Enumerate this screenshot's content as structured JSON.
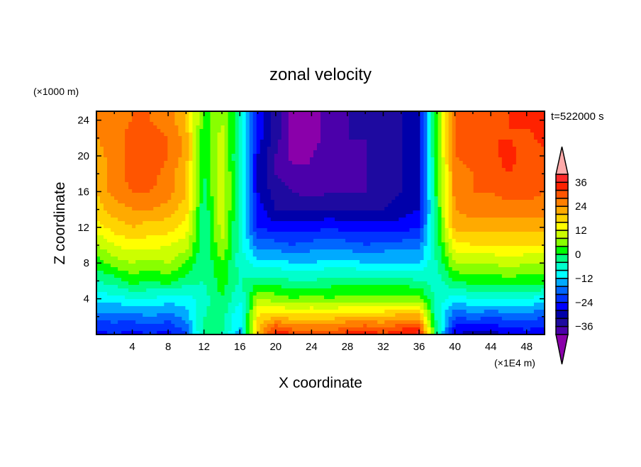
{
  "chart_data": {
    "type": "heatmap",
    "title": "zonal velocity",
    "xlabel": "X coordinate",
    "ylabel": "Z coordinate",
    "x_unit_label": "(×1E4 m)",
    "y_unit_label": "(×1000 m)",
    "time_label": "t=522000 s",
    "xlim": [
      0,
      50
    ],
    "ylim": [
      0,
      25
    ],
    "x_ticks": [
      4,
      8,
      12,
      16,
      20,
      24,
      28,
      32,
      36,
      40,
      44,
      48
    ],
    "y_ticks": [
      4,
      8,
      12,
      16,
      20,
      24
    ],
    "colorbar": {
      "levels": [
        -40,
        -36,
        -32,
        -28,
        -24,
        -20,
        -16,
        -12,
        -8,
        -4,
        0,
        4,
        8,
        12,
        16,
        20,
        24,
        28,
        32,
        36,
        40
      ],
      "tick_labels": [
        "36",
        "24",
        "12",
        "0",
        "−12",
        "−24",
        "−36"
      ],
      "tick_values": [
        36,
        24,
        12,
        0,
        -12,
        -24,
        -36
      ],
      "colors": [
        "#4b00aa",
        "#1e0aa0",
        "#0000aa",
        "#0000ff",
        "#0033ff",
        "#0066ff",
        "#00aaff",
        "#00ffff",
        "#00ffcc",
        "#00ff80",
        "#00ff00",
        "#88ff00",
        "#ccff00",
        "#ffff00",
        "#ffd400",
        "#ffaa00",
        "#ff7f00",
        "#ff5500",
        "#ff2200",
        "#ff2a2a"
      ],
      "under_color": "#8a00aa",
      "over_color": "#ffaaaa"
    },
    "grid_x": [
      0,
      2,
      4,
      6,
      8,
      10,
      12,
      14,
      16,
      18,
      20,
      22,
      24,
      26,
      28,
      30,
      32,
      34,
      36,
      38,
      40,
      42,
      44,
      46,
      48,
      50
    ],
    "grid_z": [
      24,
      22,
      20,
      18,
      16,
      14,
      12,
      10,
      8,
      6,
      4,
      2,
      0
    ],
    "values": [
      [
        24,
        26,
        28,
        28,
        26,
        20,
        2,
        8,
        -4,
        -26,
        -34,
        -42,
        -42,
        -38,
        -36,
        -36,
        -34,
        -32,
        -28,
        4,
        28,
        30,
        30,
        32,
        34,
        32
      ],
      [
        24,
        26,
        30,
        30,
        28,
        22,
        0,
        10,
        -4,
        -26,
        -34,
        -42,
        -42,
        -38,
        -36,
        -36,
        -34,
        -32,
        -28,
        4,
        28,
        30,
        32,
        32,
        30,
        34
      ],
      [
        22,
        26,
        30,
        31,
        28,
        22,
        0,
        10,
        -6,
        -28,
        -36,
        -42,
        -40,
        -38,
        -38,
        -36,
        -34,
        -32,
        -28,
        4,
        28,
        30,
        30,
        34,
        30,
        30
      ],
      [
        22,
        26,
        30,
        30,
        26,
        20,
        0,
        12,
        -6,
        -28,
        -36,
        -38,
        -40,
        -38,
        -38,
        -36,
        -34,
        -32,
        -28,
        2,
        26,
        28,
        30,
        32,
        30,
        28
      ],
      [
        20,
        26,
        28,
        28,
        26,
        20,
        -2,
        12,
        -6,
        -28,
        -34,
        -36,
        -38,
        -36,
        -36,
        -36,
        -34,
        -32,
        -28,
        2,
        26,
        28,
        28,
        30,
        30,
        28
      ],
      [
        18,
        22,
        24,
        24,
        22,
        18,
        -4,
        12,
        -6,
        -26,
        -32,
        -32,
        -32,
        -32,
        -32,
        -32,
        -32,
        -30,
        -28,
        0,
        24,
        26,
        26,
        26,
        26,
        26
      ],
      [
        14,
        18,
        20,
        18,
        18,
        14,
        -4,
        10,
        -6,
        -24,
        -26,
        -26,
        -26,
        -24,
        -26,
        -26,
        -26,
        -26,
        -24,
        0,
        22,
        22,
        22,
        22,
        22,
        22
      ],
      [
        8,
        12,
        14,
        14,
        12,
        10,
        -4,
        8,
        -6,
        -18,
        -18,
        -20,
        -18,
        -18,
        -18,
        -20,
        -18,
        -18,
        -18,
        -2,
        14,
        16,
        16,
        16,
        16,
        16
      ],
      [
        2,
        6,
        8,
        6,
        8,
        4,
        -4,
        4,
        -6,
        -10,
        -10,
        -12,
        -12,
        -10,
        -10,
        -12,
        -12,
        -12,
        -12,
        -4,
        8,
        8,
        8,
        10,
        8,
        8
      ],
      [
        -4,
        -2,
        2,
        0,
        2,
        -2,
        -4,
        2,
        -4,
        -2,
        -2,
        -4,
        -4,
        -2,
        -2,
        -2,
        -2,
        -2,
        -4,
        -6,
        0,
        2,
        2,
        2,
        2,
        2
      ],
      [
        -10,
        -10,
        -8,
        -8,
        -10,
        -10,
        -6,
        0,
        -8,
        8,
        6,
        4,
        6,
        4,
        6,
        6,
        6,
        6,
        6,
        -6,
        -10,
        -8,
        -8,
        -8,
        -8,
        -10
      ],
      [
        -18,
        -18,
        -18,
        -16,
        -18,
        -14,
        -4,
        -2,
        -12,
        16,
        20,
        18,
        18,
        18,
        20,
        20,
        20,
        22,
        22,
        -6,
        -20,
        -18,
        -20,
        -18,
        -18,
        -20
      ],
      [
        -26,
        -24,
        -26,
        -24,
        -26,
        -20,
        -2,
        -4,
        -14,
        20,
        36,
        32,
        32,
        30,
        34,
        36,
        32,
        36,
        38,
        -4,
        -28,
        -30,
        -30,
        -28,
        -26,
        -28
      ]
    ]
  }
}
